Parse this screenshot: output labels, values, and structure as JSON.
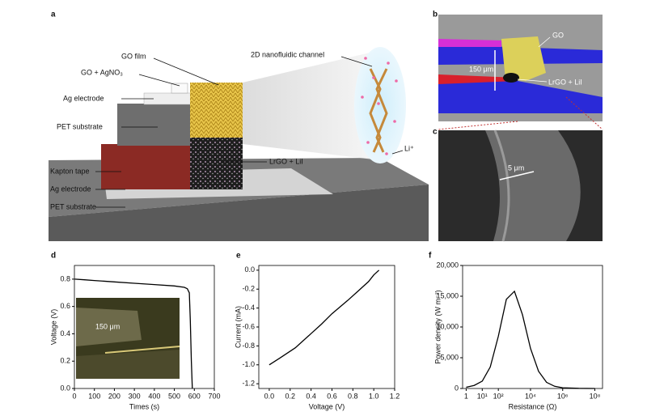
{
  "panel_labels": [
    "a",
    "b",
    "c",
    "d",
    "e",
    "f"
  ],
  "schematic": {
    "labels": [
      "GO film",
      "GO + AgNO₃",
      "Ag electrode",
      "PET substrate",
      "Kapton tape",
      "Ag electrode",
      "PET substrate",
      "LrGO + LiI",
      "2D nanofluidic channel",
      "Li⁺"
    ]
  },
  "micrograph_b": {
    "labels": [
      "GO",
      "150 μm",
      "LrGO + LiI"
    ]
  },
  "micrograph_c": {
    "scale_bar": "5 μm"
  },
  "chart_data": [
    {
      "type": "line",
      "x_label": "Times (s)",
      "y_label": "Voltage (V)",
      "annotation": "150 μm",
      "color": "#000000",
      "x": [
        2,
        50,
        100,
        200,
        300,
        400,
        500,
        550,
        565,
        575,
        580,
        585,
        590
      ],
      "values": [
        0.8,
        0.795,
        0.79,
        0.78,
        0.77,
        0.76,
        0.75,
        0.74,
        0.73,
        0.7,
        0.5,
        0.2,
        0
      ],
      "xlim": [
        0,
        700
      ],
      "xticks": [
        0,
        100,
        200,
        300,
        400,
        500,
        600,
        700
      ],
      "ylim": [
        0,
        0.9
      ],
      "yticks": [
        {
          "value": 0,
          "label": "0.0"
        },
        0.2,
        0.4,
        0.6,
        0.8
      ]
    },
    {
      "type": "line",
      "x_label": "Voltage (V)",
      "y_label": "Current (mA)",
      "color": "#000000",
      "x": [
        0,
        0.1,
        0.25,
        0.4,
        0.5,
        0.6,
        0.75,
        0.85,
        0.95,
        1.0,
        1.05
      ],
      "values": [
        -1.0,
        -0.93,
        -0.82,
        -0.67,
        -0.57,
        -0.46,
        -0.32,
        -0.22,
        -0.12,
        -0.05,
        0
      ],
      "xlim": [
        -0.1,
        1.2
      ],
      "xticks": [
        {
          "value": 0,
          "label": "0.0"
        },
        0.2,
        0.4,
        0.6,
        0.8,
        {
          "value": 1,
          "label": "1.0"
        },
        1.2
      ],
      "ylim": [
        -1.25,
        0.05
      ],
      "yticks": [
        {
          "value": 0,
          "label": "0.0"
        },
        -0.2,
        -0.4,
        -0.6,
        -0.8,
        {
          "value": -1,
          "label": "-1.0"
        },
        -1.2
      ]
    },
    {
      "type": "line",
      "x_label": "Resistance (Ω)",
      "y_label": "Power density (W m⁻²)",
      "color": "#000000",
      "xscale": "log",
      "x": [
        1,
        3.16,
        10,
        31.6,
        100,
        316,
        1000,
        3162,
        10000,
        31623,
        100000,
        316228,
        1000000,
        10000000,
        100000000
      ],
      "values": [
        200,
        500,
        1200,
        3500,
        8500,
        14500,
        15800,
        12000,
        6500,
        2800,
        1000,
        350,
        120,
        20,
        5
      ],
      "xlim": [
        0.6,
        300000000
      ],
      "xticks": [
        1,
        {
          "value": 10,
          "label": "10¹"
        },
        {
          "value": 100,
          "label": "10²"
        },
        {
          "value": 10000,
          "label": "10⁴"
        },
        {
          "value": 1000000,
          "label": "10⁶"
        },
        {
          "value": 100000000,
          "label": "10⁸"
        }
      ],
      "ylim": [
        0,
        20000
      ],
      "yticks": [
        0,
        {
          "value": 5000,
          "label": "5,000"
        },
        {
          "value": 10000,
          "label": "10,000"
        },
        {
          "value": 15000,
          "label": "15,000"
        },
        {
          "value": 20000,
          "label": "20,000"
        }
      ]
    }
  ]
}
